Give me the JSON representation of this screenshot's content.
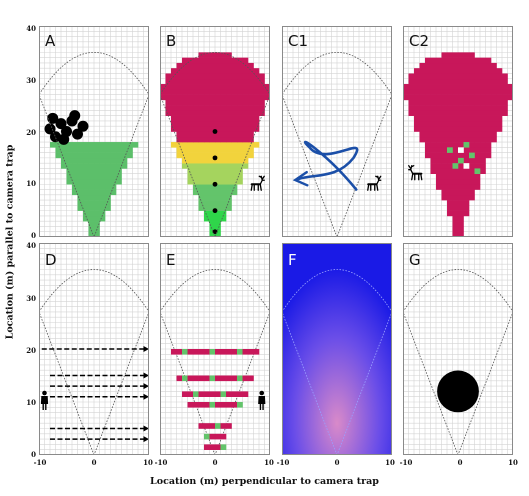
{
  "figure": {
    "y_axis_label": "Location (m) parallel to camera trap",
    "x_axis_label": "Location (m) perpendicular to camera trap",
    "y_ticks_top": [
      "40",
      "30",
      "20",
      "10",
      "0"
    ],
    "y_ticks_bottom": [
      "40",
      "30",
      "20",
      "10",
      "0"
    ],
    "x_ticks": [
      "-10",
      "0",
      "10"
    ]
  },
  "panels": [
    {
      "id": "A",
      "label": "A"
    },
    {
      "id": "B",
      "label": "B"
    },
    {
      "id": "C1",
      "label": "C1"
    },
    {
      "id": "C2",
      "label": "C2"
    },
    {
      "id": "D",
      "label": "D"
    },
    {
      "id": "E",
      "label": "E"
    },
    {
      "id": "F",
      "label": "F"
    },
    {
      "id": "G",
      "label": "G"
    }
  ],
  "colors": {
    "grid": "#d4d4d4",
    "border": "#8a8a8a",
    "detection_green": "#5cbf6a",
    "magenta": "#c8175a",
    "band_yellow": "#f2d33c",
    "band_light_green": "#a5d45e",
    "band_green": "#63c46b",
    "band_bright_green": "#2fd64a",
    "arrow_blue": "#1b4fa8",
    "heat_blue": "#1a1ae6",
    "heat_pink": "#d98ac9",
    "black": "#000000"
  },
  "icons": [
    "bush-icon",
    "deer-icon",
    "person-icon",
    "obstruction-disc-icon"
  ]
}
